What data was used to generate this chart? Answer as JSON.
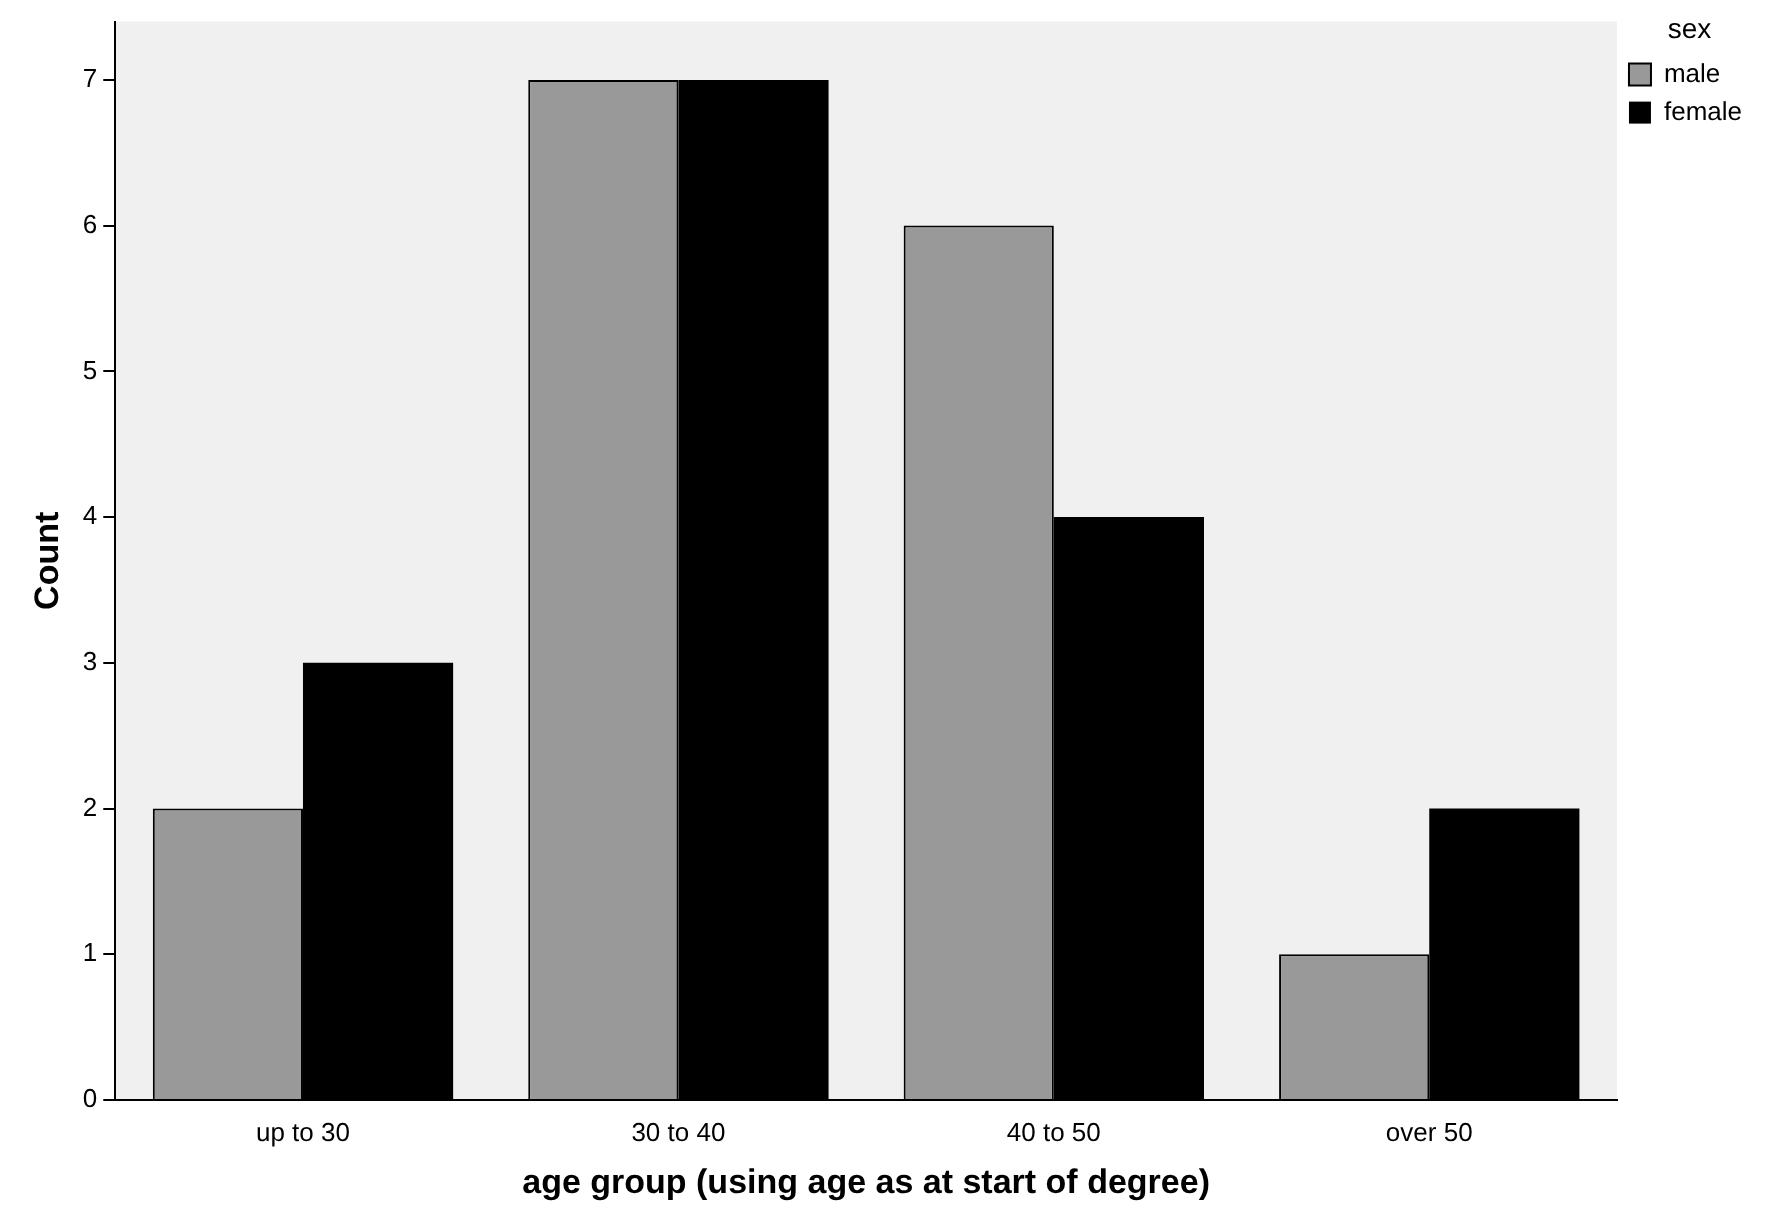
{
  "chart_data": {
    "type": "bar",
    "xlabel": "age group (using age as at start of degree)",
    "ylabel": "Count",
    "legend_title": "sex",
    "categories": [
      "up to 30",
      "30 to 40",
      "40 to 50",
      "over 50"
    ],
    "series": [
      {
        "name": "male",
        "color": "#999999",
        "values": [
          2,
          7,
          6,
          1
        ]
      },
      {
        "name": "female",
        "color": "#000000",
        "values": [
          3,
          7,
          4,
          2
        ]
      }
    ],
    "ylim": [
      0,
      7.4
    ],
    "yticks": [
      0,
      1,
      2,
      3,
      4,
      5,
      6,
      7
    ],
    "grid": false,
    "legend": "top right"
  }
}
